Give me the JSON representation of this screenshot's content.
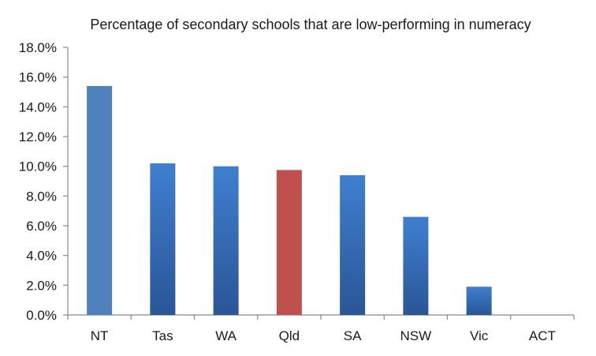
{
  "chart_data": {
    "type": "bar",
    "title": "Percentage of secondary schools that are low-performing in numeracy",
    "xlabel": "",
    "ylabel": "",
    "categories": [
      "NT",
      "Tas",
      "WA",
      "Qld",
      "SA",
      "NSW",
      "Vic",
      "ACT"
    ],
    "values": [
      15.4,
      10.2,
      10.0,
      9.75,
      9.4,
      6.6,
      1.9,
      0.0
    ],
    "highlight": [
      "#5080c0",
      "#3f78c6",
      "#3f78c6",
      "#c0504d",
      "#3f78c6",
      "#3f78c6",
      "#3f78c6",
      "#3f78c6"
    ],
    "ylim": [
      0,
      18
    ],
    "yticks": [
      "0.0%",
      "2.0%",
      "4.0%",
      "6.0%",
      "8.0%",
      "10.0%",
      "12.0%",
      "14.0%",
      "16.0%",
      "18.0%"
    ],
    "grid": false,
    "legend": "none"
  }
}
